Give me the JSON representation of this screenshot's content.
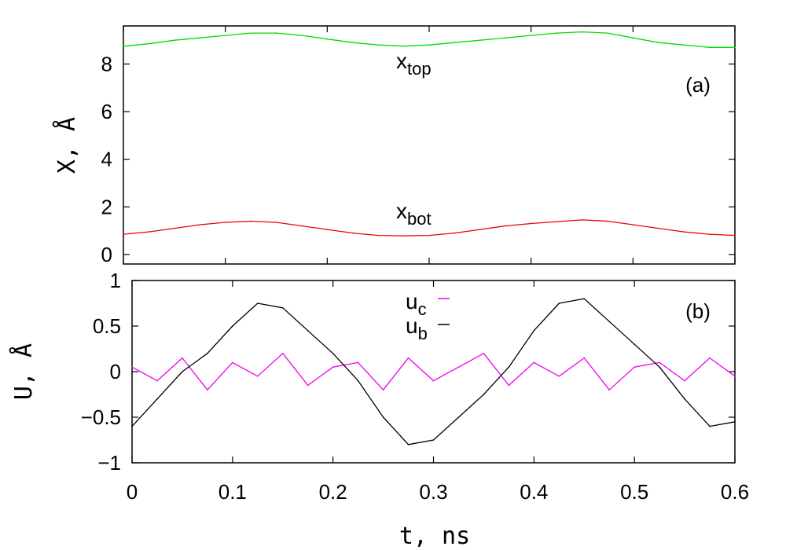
{
  "chart_data": [
    {
      "panel": "(a)",
      "type": "line",
      "ylabel": "X, Å",
      "xlim": [
        0,
        0.6
      ],
      "ylim": [
        -0.4,
        9.6
      ],
      "yticks": [
        "0",
        "2",
        "4",
        "6",
        "8"
      ],
      "grid": false,
      "annotations": [
        {
          "base": "x",
          "sub": "top",
          "x": 0.27,
          "y": 7.8
        },
        {
          "base": "x",
          "sub": "bot",
          "x": 0.27,
          "y": 1.35
        }
      ],
      "series": [
        {
          "name": "x_top",
          "color": "#00dd00",
          "x": [
            0,
            0.025,
            0.05,
            0.075,
            0.1,
            0.125,
            0.15,
            0.175,
            0.2,
            0.225,
            0.25,
            0.275,
            0.3,
            0.325,
            0.35,
            0.375,
            0.4,
            0.425,
            0.45,
            0.475,
            0.5,
            0.525,
            0.55,
            0.575,
            0.6
          ],
          "y": [
            8.75,
            8.85,
            9.0,
            9.1,
            9.2,
            9.3,
            9.3,
            9.2,
            9.05,
            8.9,
            8.8,
            8.75,
            8.8,
            8.9,
            9.0,
            9.1,
            9.2,
            9.3,
            9.35,
            9.3,
            9.1,
            8.9,
            8.8,
            8.7,
            8.7
          ]
        },
        {
          "name": "x_bot",
          "color": "#ee0000",
          "x": [
            0,
            0.025,
            0.05,
            0.075,
            0.1,
            0.125,
            0.15,
            0.175,
            0.2,
            0.225,
            0.25,
            0.275,
            0.3,
            0.325,
            0.35,
            0.375,
            0.4,
            0.425,
            0.45,
            0.475,
            0.5,
            0.525,
            0.55,
            0.575,
            0.6
          ],
          "y": [
            0.85,
            0.95,
            1.1,
            1.25,
            1.35,
            1.4,
            1.35,
            1.2,
            1.05,
            0.9,
            0.8,
            0.78,
            0.8,
            0.9,
            1.05,
            1.2,
            1.3,
            1.38,
            1.45,
            1.4,
            1.25,
            1.1,
            0.95,
            0.85,
            0.8
          ]
        }
      ]
    },
    {
      "panel": "(b)",
      "type": "line",
      "xlabel": "t, ns",
      "ylabel": "U, Å",
      "xlim": [
        0,
        0.6
      ],
      "ylim": [
        -1,
        1
      ],
      "xticks": [
        "0",
        "0.1",
        "0.2",
        "0.3",
        "0.4",
        "0.5",
        "0.6"
      ],
      "yticks": [
        "−1",
        "−0.5",
        "0",
        "0.5",
        "1"
      ],
      "grid": false,
      "legend": {
        "position": "top-center",
        "entries": [
          {
            "base": "u",
            "sub": "c",
            "color": "#ee00ee"
          },
          {
            "base": "u",
            "sub": "b",
            "color": "#000000"
          }
        ]
      },
      "series": [
        {
          "name": "u_c",
          "color": "#ee00ee",
          "x": [
            0,
            0.025,
            0.05,
            0.075,
            0.1,
            0.125,
            0.15,
            0.175,
            0.2,
            0.225,
            0.25,
            0.275,
            0.3,
            0.325,
            0.35,
            0.375,
            0.4,
            0.425,
            0.45,
            0.475,
            0.5,
            0.525,
            0.55,
            0.575,
            0.6
          ],
          "y": [
            0.05,
            -0.1,
            0.15,
            -0.2,
            0.1,
            -0.05,
            0.2,
            -0.15,
            0.05,
            0.1,
            -0.2,
            0.15,
            -0.1,
            0.05,
            0.2,
            -0.15,
            0.1,
            -0.05,
            0.15,
            -0.2,
            0.05,
            0.1,
            -0.1,
            0.15,
            -0.05
          ]
        },
        {
          "name": "u_b",
          "color": "#000000",
          "x": [
            0,
            0.025,
            0.05,
            0.075,
            0.1,
            0.125,
            0.15,
            0.175,
            0.2,
            0.225,
            0.25,
            0.275,
            0.3,
            0.325,
            0.35,
            0.375,
            0.4,
            0.425,
            0.45,
            0.475,
            0.5,
            0.525,
            0.55,
            0.575,
            0.6
          ],
          "y": [
            -0.6,
            -0.3,
            0.0,
            0.2,
            0.5,
            0.75,
            0.7,
            0.45,
            0.2,
            -0.1,
            -0.5,
            -0.8,
            -0.75,
            -0.5,
            -0.25,
            0.05,
            0.45,
            0.75,
            0.8,
            0.55,
            0.3,
            0.05,
            -0.3,
            -0.6,
            -0.55
          ]
        }
      ]
    }
  ]
}
